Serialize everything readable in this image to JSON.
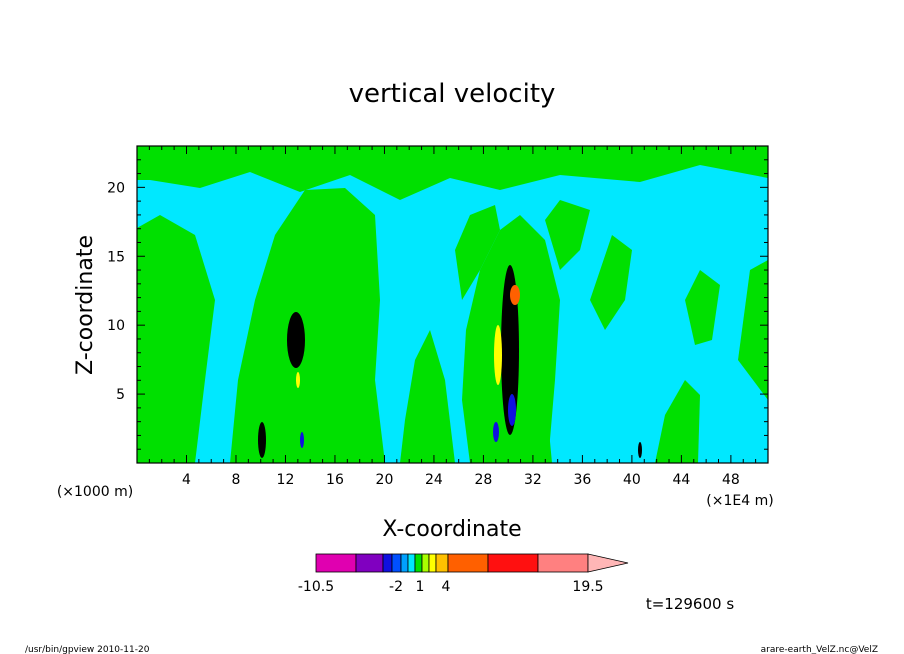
{
  "chart_data": {
    "type": "heatmap",
    "title": "vertical velocity",
    "xlabel": "X-coordinate",
    "ylabel": "Z-coordinate",
    "x_units": "(×1000 m)",
    "x_units_right": "(×1E4 m)",
    "xlim": [
      0,
      51
    ],
    "ylim": [
      0,
      23
    ],
    "x_ticks": [
      4,
      8,
      12,
      16,
      20,
      24,
      28,
      32,
      36,
      40,
      44,
      48
    ],
    "y_ticks": [
      5,
      10,
      15,
      20
    ],
    "time_label": "t=129600 s",
    "colorbar": {
      "labels": [
        "-10.5",
        "-2",
        "1",
        "4",
        "19.5"
      ],
      "label_values": [
        -10.5,
        -2,
        1,
        4,
        19.5
      ],
      "colors": [
        "#e000b0",
        "#8000c0",
        "#1010e0",
        "#0050ff",
        "#00a0ff",
        "#00e8ff",
        "#00e000",
        "#a8ff00",
        "#ffff00",
        "#ffc000",
        "#ff6000",
        "#ff1010",
        "#ff8080",
        "#ffb6b6"
      ],
      "arrow_color": "#ffb6b6"
    },
    "regions": {
      "background_color": "#00e8ff",
      "positive_color": "#00e000",
      "core_colors": [
        "#000000",
        "#ff6000",
        "#ffff00",
        "#1010e0"
      ]
    }
  },
  "footer": {
    "left": "/usr/bin/gpview  2010-11-20",
    "right": "arare-earth_VelZ.nc@VelZ"
  }
}
